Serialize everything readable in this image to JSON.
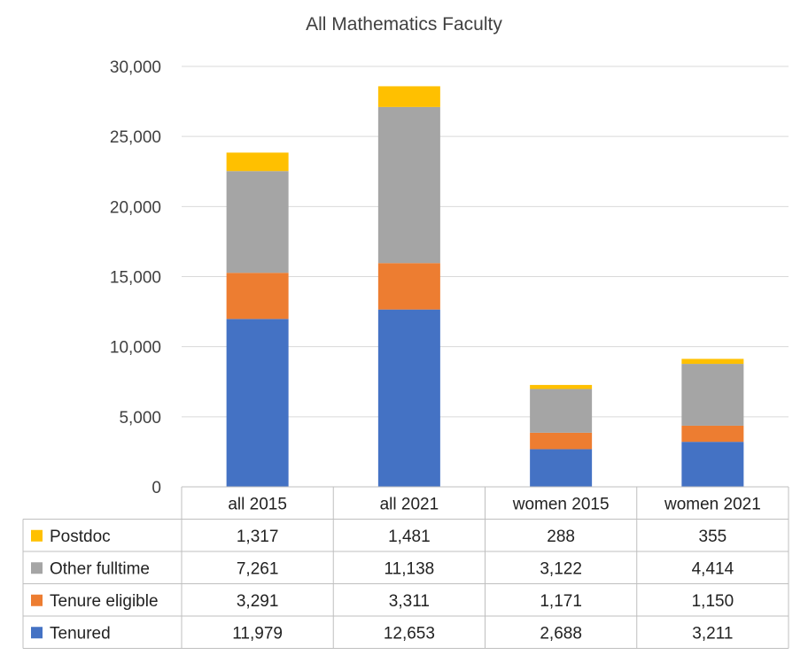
{
  "chart_data": {
    "type": "bar",
    "stacked": true,
    "title": "All Mathematics Faculty",
    "categories": [
      "all 2015",
      "all 2021",
      "women 2015",
      "women 2021"
    ],
    "series": [
      {
        "name": "Tenured",
        "values": [
          11979,
          12653,
          2688,
          3211
        ],
        "labels": [
          "11,979",
          "12,653",
          "2,688",
          "3,211"
        ],
        "color": "#4472C4"
      },
      {
        "name": "Tenure eligible",
        "values": [
          3291,
          3311,
          1171,
          1150
        ],
        "labels": [
          "3,291",
          "3,311",
          "1,171",
          "1,150"
        ],
        "color": "#ED7D31"
      },
      {
        "name": "Other fulltime",
        "values": [
          7261,
          11138,
          3122,
          4414
        ],
        "labels": [
          "7,261",
          "11,138",
          "3,122",
          "4,414"
        ],
        "color": "#A5A5A5"
      },
      {
        "name": "Postdoc",
        "values": [
          1317,
          1481,
          288,
          355
        ],
        "labels": [
          "1,317",
          "1,481",
          "288",
          "355"
        ],
        "color": "#FFC000"
      }
    ],
    "ylim": [
      0,
      30000
    ],
    "yticks": [
      0,
      5000,
      10000,
      15000,
      20000,
      25000,
      30000
    ],
    "ytick_labels": [
      "0",
      "5,000",
      "10,000",
      "15,000",
      "20,000",
      "25,000",
      "30,000"
    ],
    "grid": true,
    "legend": "data-table-below",
    "table_row_order": [
      "Postdoc",
      "Other fulltime",
      "Tenure eligible",
      "Tenured"
    ]
  }
}
